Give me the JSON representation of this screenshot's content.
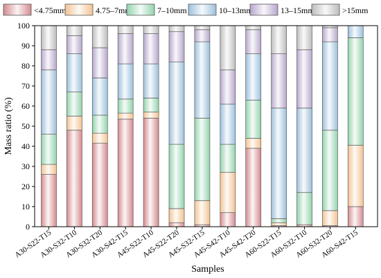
{
  "chart_data": {
    "type": "bar",
    "stacked": true,
    "xlabel": "Samples",
    "ylabel": "Mass ratio (%)",
    "ylim": [
      0,
      100
    ],
    "yticks": [
      0,
      10,
      20,
      30,
      40,
      50,
      60,
      70,
      80,
      90,
      100
    ],
    "grid": false,
    "legend_position": "top",
    "categories": [
      "A30-S22-T15",
      "A30-S32-T10",
      "A30-S32-T20",
      "A30-S42-T15",
      "A45-S22-T10",
      "A45-S22-T20",
      "A45-S32-T15",
      "A45-S42-T10",
      "A45-S42-T20",
      "A60-S22-T15",
      "A60-S32-T10",
      "A60-S32-T20",
      "A60-S42-T15"
    ],
    "series": [
      {
        "name": "<4.75mm",
        "color": "#d48a8f",
        "values": [
          26,
          48,
          41.5,
          53.5,
          54,
          2,
          1,
          7,
          39,
          0.5,
          1,
          0.5,
          10
        ]
      },
      {
        "name": "4.75–7mm",
        "color": "#f2c392",
        "values": [
          5,
          7,
          5,
          3,
          3,
          7,
          12,
          20,
          5,
          1.5,
          0,
          7.5,
          30.5
        ]
      },
      {
        "name": "7–10mm",
        "color": "#93d3ad",
        "values": [
          15,
          12,
          9,
          7,
          7,
          32,
          41,
          14,
          19,
          2,
          16,
          40,
          53.5
        ]
      },
      {
        "name": "10–13mm",
        "color": "#9cc0dc",
        "values": [
          32,
          19,
          18.5,
          17.5,
          17,
          41,
          38,
          20,
          23,
          55,
          42,
          44,
          6
        ]
      },
      {
        "name": "13–15mm",
        "color": "#b7a7cc",
        "values": [
          10,
          9,
          15,
          15,
          15,
          15,
          6,
          17,
          12,
          27,
          29,
          7,
          0
        ]
      },
      {
        "name": ">15mm",
        "color": "#bdbdbd",
        "values": [
          12,
          5,
          11,
          4,
          4,
          3,
          2,
          22,
          2,
          14,
          12,
          1,
          0
        ]
      }
    ]
  }
}
